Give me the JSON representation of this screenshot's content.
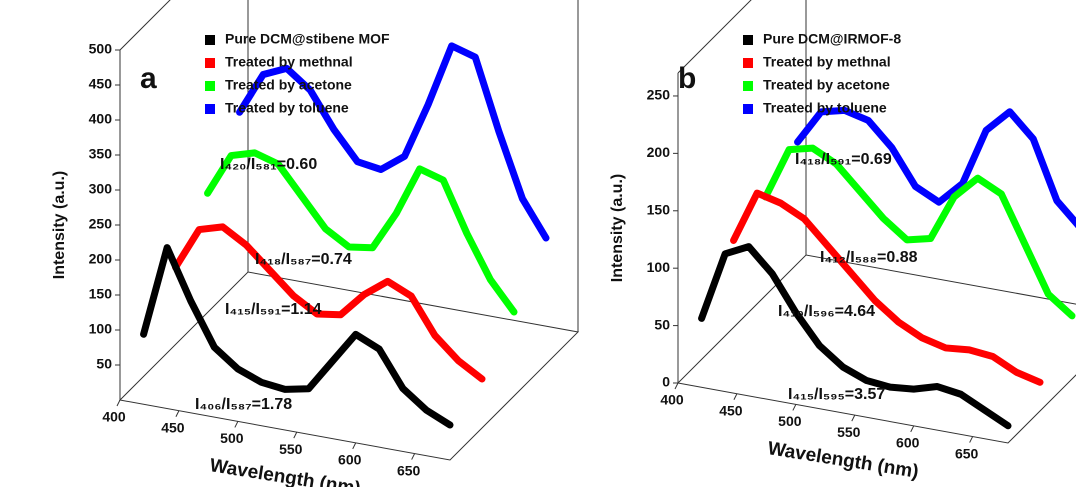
{
  "chart_data": [
    {
      "type": "line",
      "panel_label": "a",
      "xlabel": "Wavelength (nm)",
      "ylabel": "Intensity (a.u.)",
      "x": [
        420,
        440,
        460,
        480,
        500,
        520,
        540,
        560,
        580,
        600,
        620,
        640,
        660,
        680
      ],
      "xlim": [
        400,
        680
      ],
      "xticks": [
        400,
        450,
        500,
        550,
        600,
        650
      ],
      "ylim": [
        0,
        500
      ],
      "yticks": [
        50,
        100,
        150,
        200,
        250,
        300,
        350,
        400,
        450,
        500
      ],
      "series": [
        {
          "name": "Pure DCM@stibene MOF",
          "color": "#000000",
          "values": [
            100,
            230,
            160,
            100,
            75,
            62,
            58,
            65,
            110,
            155,
            140,
            90,
            65,
            50
          ]
        },
        {
          "name": "Treated by methnal",
          "color": "#ff0000",
          "values": [
            150,
            210,
            220,
            200,
            170,
            140,
            120,
            125,
            160,
            185,
            170,
            120,
            90,
            70
          ]
        },
        {
          "name": "Treated by acetone",
          "color": "#00ff00",
          "values": [
            210,
            270,
            280,
            270,
            230,
            190,
            170,
            175,
            230,
            300,
            290,
            220,
            160,
            120
          ]
        },
        {
          "name": "Treated by toluene",
          "color": "#0000ff",
          "values": [
            280,
            340,
            355,
            330,
            280,
            240,
            235,
            260,
            340,
            430,
            420,
            320,
            230,
            180
          ]
        }
      ],
      "annotations": [
        "I₄₂₀/I₅₈₁=0.60",
        "I₄₁₈/I₅₈₇=0.74",
        "I₄₁₅/I₅₉₁=1.14",
        "I₄₀₆/I₅₈₇=1.78"
      ]
    },
    {
      "type": "line",
      "panel_label": "b",
      "xlabel": "Wavelength (nm)",
      "ylabel": "Intensity (a.u.)",
      "x": [
        420,
        440,
        460,
        480,
        500,
        520,
        540,
        560,
        580,
        600,
        620,
        640,
        660,
        680
      ],
      "xlim": [
        400,
        680
      ],
      "xticks": [
        400,
        450,
        500,
        550,
        600,
        650
      ],
      "ylim": [
        0,
        270
      ],
      "yticks": [
        0,
        50,
        100,
        150,
        200,
        250
      ],
      "series": [
        {
          "name": "Pure DCM@IRMOF-8",
          "color": "#000000",
          "values": [
            60,
            120,
            130,
            110,
            80,
            55,
            40,
            32,
            30,
            32,
            38,
            35,
            25,
            15
          ]
        },
        {
          "name": "Treated by methnal",
          "color": "#ff0000",
          "values": [
            100,
            145,
            140,
            130,
            110,
            90,
            70,
            55,
            45,
            40,
            42,
            40,
            30,
            25
          ]
        },
        {
          "name": "Treated by acetone",
          "color": "#00ff00",
          "values": [
            110,
            155,
            160,
            150,
            130,
            110,
            95,
            100,
            140,
            160,
            150,
            110,
            70,
            55
          ]
        },
        {
          "name": "Treated by toluene",
          "color": "#0000ff",
          "values": [
            130,
            160,
            165,
            160,
            140,
            110,
            100,
            120,
            170,
            190,
            170,
            120,
            100,
            95
          ]
        }
      ],
      "annotations": [
        "I₄₁₈/I₅₉₁=0.69",
        "I₄₁₂/I₅₈₈=0.88",
        "I₄₁₀/I₅₉₆=4.64",
        "I₄₁₅/I₅₉₅=3.57"
      ]
    }
  ]
}
